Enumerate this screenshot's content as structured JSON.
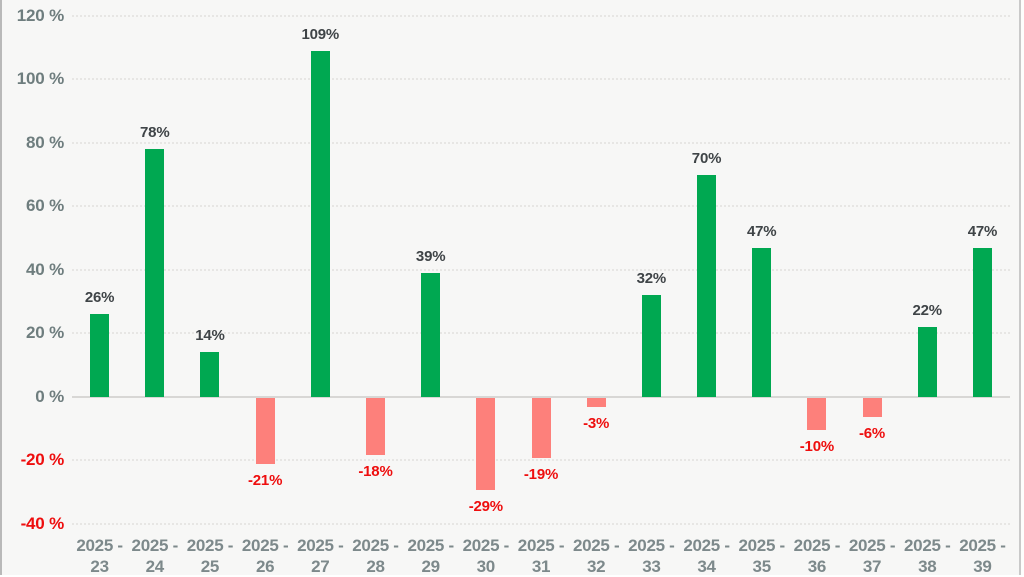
{
  "chart_data": {
    "type": "bar",
    "title": "",
    "xlabel": "",
    "ylabel": "",
    "categories": [
      "2025 - 23",
      "2025 - 24",
      "2025 - 25",
      "2025 - 26",
      "2025 - 27",
      "2025 - 28",
      "2025 - 29",
      "2025 - 30",
      "2025 - 31",
      "2025 - 32",
      "2025 - 33",
      "2025 - 34",
      "2025 - 35",
      "2025 - 36",
      "2025 - 37",
      "2025 - 38",
      "2025 - 39"
    ],
    "values": [
      26,
      78,
      14,
      -21,
      109,
      -18,
      39,
      -29,
      -19,
      -3,
      32,
      70,
      47,
      -10,
      -6,
      22,
      47
    ],
    "value_label_suffix": "%",
    "y_ticks": [
      120,
      100,
      80,
      60,
      40,
      20,
      0,
      -20,
      -40
    ],
    "y_tick_suffix": " %",
    "ylim": [
      -40,
      120
    ],
    "grid": true,
    "legend": "none",
    "colors": {
      "positive_bar": "#00a851",
      "negative_bar": "#fd807b",
      "positive_value_label": "#3f4447",
      "negative_value_label": "#ee0e0e",
      "positive_axis_label": "#6e7d7e",
      "negative_axis_label": "#ee0e0e",
      "category_label": "#7d898b",
      "gridline": "#e7e6e4",
      "zero_line": "#d8d7d5",
      "background": "#f7f7f6",
      "right_border": "#c9c9c9",
      "right_strip": "#fdfdfc"
    }
  }
}
